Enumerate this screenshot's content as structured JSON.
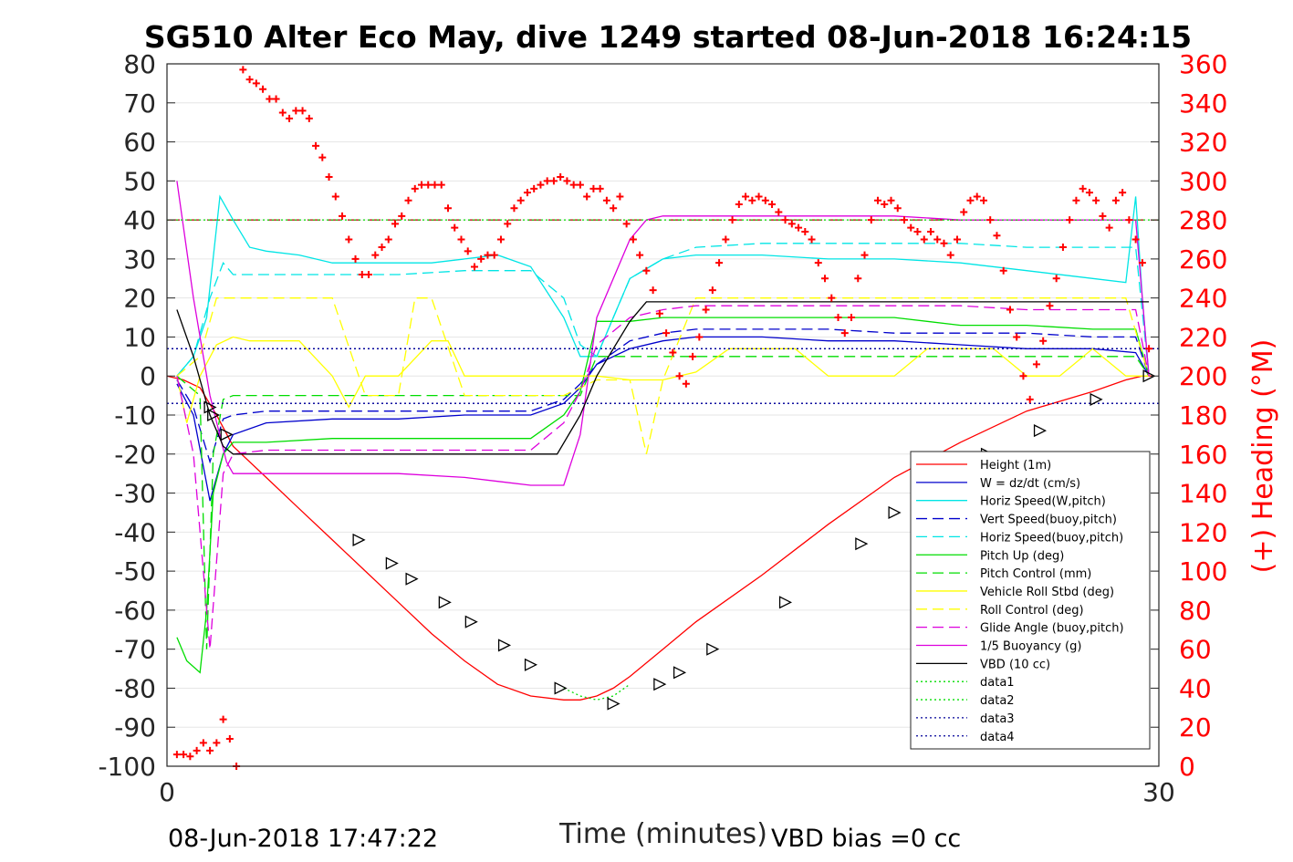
{
  "chart_data": {
    "type": "line",
    "title": "SG510 Alter Eco May, dive 1249 started 08-Jun-2018 16:24:15",
    "xlabel": "Time (minutes)",
    "ylabel": "",
    "y2label": "(+) Heading (°M)",
    "xlim": [
      0,
      30
    ],
    "ylim": [
      -100,
      80
    ],
    "y2lim": [
      0,
      360
    ],
    "x_ticks": [
      "0",
      "30"
    ],
    "y_ticks": [
      "80",
      "70",
      "60",
      "50",
      "40",
      "30",
      "20",
      "10",
      "0",
      "-10",
      "-20",
      "-30",
      "-40",
      "-50",
      "-60",
      "-70",
      "-80",
      "-90",
      "-100"
    ],
    "y2_ticks": [
      "360",
      "340",
      "320",
      "300",
      "280",
      "260",
      "240",
      "220",
      "200",
      "180",
      "160",
      "140",
      "120",
      "100",
      "80",
      "60",
      "40",
      "20",
      "0"
    ],
    "footer_left": "08-Jun-2018 17:47:22",
    "footer_right": "VBD bias =0 cc",
    "grid": "horizontal",
    "legend_position": "bottom-right",
    "colors": {
      "red": "#ff0000",
      "blue": "#0000cc",
      "cyan": "#00e5e5",
      "green": "#00dd00",
      "yellow": "#ffff00",
      "magenta": "#dd00dd",
      "black": "#000000",
      "darkred": "#b30000",
      "navy": "#000099"
    },
    "series": [
      {
        "name": "Height (1m)",
        "color": "#ff0000",
        "dash": "",
        "x": [
          0.0,
          0.5,
          1.0,
          1.5,
          2.0,
          3.0,
          4.0,
          5.0,
          6.0,
          7.0,
          8.0,
          9.0,
          10.0,
          11.0,
          12.0,
          12.5,
          13.0,
          13.5,
          14.0,
          15.0,
          16.0,
          18.0,
          20.0,
          22.0,
          24.0,
          26.0,
          28.0,
          29.0,
          29.5,
          29.8
        ],
        "y": [
          0.0,
          -1.0,
          -3.0,
          -10.0,
          -18.0,
          -26.0,
          -34.0,
          -42.0,
          -50.0,
          -58.0,
          -66.0,
          -73.0,
          -79.0,
          -82.0,
          -83.0,
          -83.0,
          -82.0,
          -80.0,
          -77.0,
          -70.0,
          -63.0,
          -51.0,
          -38.0,
          -26.0,
          -17.0,
          -9.0,
          -4.0,
          -1.0,
          0.0,
          0.0
        ]
      },
      {
        "name": "W = dz/dt (cm/s)",
        "color": "#0000cc",
        "dash": "",
        "x": [
          0.3,
          0.8,
          1.3,
          1.7,
          2.0,
          3.0,
          5.0,
          7.0,
          9.0,
          10.0,
          11.0,
          12.0,
          12.5,
          13.0,
          14.0,
          15.0,
          16.0,
          18.0,
          20.0,
          22.0,
          24.0,
          26.0,
          28.0,
          29.3,
          29.7
        ],
        "y": [
          -2.0,
          -10.0,
          -32.0,
          -20.0,
          -15.0,
          -12.0,
          -11.0,
          -11.0,
          -10.0,
          -10.0,
          -10.0,
          -7.0,
          -3.0,
          3.0,
          7.0,
          9.0,
          10.0,
          10.0,
          9.0,
          9.0,
          8.0,
          7.0,
          7.0,
          6.0,
          0.0
        ]
      },
      {
        "name": "Horiz Speed(W,pitch)",
        "color": "#00e5e5",
        "dash": "",
        "x": [
          0.3,
          0.8,
          1.2,
          1.6,
          2.0,
          2.5,
          3.0,
          4.0,
          5.0,
          6.0,
          7.0,
          8.0,
          9.0,
          10.0,
          11.0,
          12.0,
          12.5,
          13.0,
          14.0,
          15.0,
          16.0,
          18.0,
          20.0,
          22.0,
          24.0,
          26.0,
          28.0,
          29.0,
          29.3,
          29.5,
          29.7
        ],
        "y": [
          0.0,
          5.0,
          15.0,
          46.0,
          40.0,
          33.0,
          32.0,
          31.0,
          29.0,
          29.0,
          29.0,
          29.0,
          30.0,
          31.0,
          28.0,
          15.0,
          5.0,
          5.0,
          25.0,
          30.0,
          31.0,
          31.0,
          30.0,
          30.0,
          29.0,
          27.0,
          25.0,
          24.0,
          46.0,
          20.0,
          0.0
        ]
      },
      {
        "name": "Vert Speed(buoy,pitch)",
        "color": "#0000cc",
        "dash": "12,6",
        "x": [
          0.3,
          0.8,
          1.3,
          1.7,
          2.0,
          3.0,
          5.0,
          7.0,
          9.0,
          10.0,
          11.0,
          12.0,
          12.5,
          13.0,
          14.0,
          15.0,
          16.0,
          18.0,
          20.0,
          22.0,
          24.0,
          26.0,
          28.0,
          29.3,
          29.7
        ],
        "y": [
          -1.0,
          -8.0,
          -22.0,
          -11.0,
          -10.0,
          -9.0,
          -9.0,
          -9.0,
          -9.0,
          -9.0,
          -9.0,
          -6.0,
          -2.0,
          3.0,
          9.0,
          11.0,
          12.0,
          12.0,
          12.0,
          11.0,
          11.0,
          11.0,
          10.0,
          10.0,
          0.0
        ]
      },
      {
        "name": "Horiz Speed(buoy,pitch)",
        "color": "#00e5e5",
        "dash": "12,6",
        "x": [
          0.3,
          0.8,
          1.3,
          1.7,
          2.0,
          3.0,
          5.0,
          7.0,
          9.0,
          10.0,
          11.0,
          12.0,
          12.5,
          13.0,
          14.0,
          15.0,
          16.0,
          18.0,
          20.0,
          22.0,
          24.0,
          26.0,
          28.0,
          29.3,
          29.7
        ],
        "y": [
          0.0,
          5.0,
          20.0,
          29.0,
          26.0,
          26.0,
          26.0,
          26.0,
          27.0,
          27.0,
          27.0,
          20.0,
          8.0,
          5.0,
          25.0,
          30.0,
          33.0,
          34.0,
          34.0,
          34.0,
          34.0,
          33.0,
          33.0,
          33.0,
          0.0
        ]
      },
      {
        "name": "Pitch Up (deg)",
        "color": "#00dd00",
        "dash": "",
        "x": [
          0.3,
          0.6,
          1.0,
          1.2,
          1.4,
          1.7,
          2.0,
          3.0,
          5.0,
          7.0,
          9.0,
          10.0,
          11.0,
          12.0,
          12.5,
          13.0,
          14.0,
          15.0,
          16.0,
          18.0,
          20.0,
          22.0,
          24.0,
          26.0,
          28.0,
          29.3,
          29.7
        ],
        "y": [
          -67.0,
          -73.0,
          -76.0,
          -60.0,
          -30.0,
          -20.0,
          -17.0,
          -17.0,
          -16.0,
          -16.0,
          -16.0,
          -16.0,
          -16.0,
          -10.0,
          -4.0,
          14.0,
          14.0,
          15.0,
          15.0,
          15.0,
          15.0,
          15.0,
          13.0,
          13.0,
          12.0,
          12.0,
          0.0
        ]
      },
      {
        "name": "Pitch Control (mm)",
        "color": "#00dd00",
        "dash": "12,6",
        "x": [
          0.3,
          1.0,
          1.2,
          1.4,
          1.7,
          2.0,
          5.0,
          8.0,
          10.0,
          11.0,
          12.0,
          12.5,
          13.0,
          14.0,
          16.0,
          18.0,
          20.0,
          22.0,
          24.0,
          26.0,
          28.0,
          29.3,
          29.7
        ],
        "y": [
          0.0,
          -5.0,
          -70.0,
          -20.0,
          -6.0,
          -5.0,
          -5.0,
          -5.0,
          -5.0,
          -5.0,
          -5.0,
          -5.0,
          5.0,
          5.0,
          5.0,
          5.0,
          5.0,
          5.0,
          5.0,
          5.0,
          5.0,
          5.0,
          0.0
        ]
      },
      {
        "name": "Vehicle Roll Stbd (deg)",
        "color": "#ffff00",
        "dash": "",
        "x": [
          0.3,
          0.6,
          1.0,
          1.5,
          2.0,
          2.5,
          3.0,
          4.0,
          5.0,
          5.5,
          6.0,
          7.0,
          8.0,
          8.5,
          9.0,
          10.0,
          11.0,
          12.0,
          13.0,
          14.0,
          15.0,
          16.0,
          17.0,
          18.0,
          19.0,
          20.0,
          21.0,
          22.0,
          23.0,
          24.0,
          25.0,
          26.0,
          27.0,
          28.0,
          29.0,
          29.7
        ],
        "y": [
          0.0,
          -12.0,
          0.0,
          8.0,
          10.0,
          9.0,
          9.0,
          9.0,
          0.0,
          -8.0,
          0.0,
          0.0,
          9.0,
          9.0,
          0.0,
          0.0,
          0.0,
          0.0,
          0.0,
          -1.0,
          -1.0,
          1.0,
          7.0,
          7.0,
          7.0,
          0.0,
          0.0,
          0.0,
          7.0,
          7.0,
          7.0,
          0.0,
          0.0,
          7.0,
          0.0,
          0.0
        ]
      },
      {
        "name": "Roll Control (deg)",
        "color": "#ffff00",
        "dash": "12,6",
        "x": [
          0.3,
          1.0,
          1.5,
          2.0,
          3.0,
          4.0,
          5.0,
          6.0,
          7.0,
          7.5,
          8.0,
          9.0,
          10.0,
          11.0,
          12.0,
          13.0,
          14.0,
          14.5,
          15.0,
          16.0,
          18.0,
          20.0,
          22.0,
          24.0,
          26.0,
          28.0,
          29.0,
          29.7
        ],
        "y": [
          0.0,
          5.0,
          20.0,
          20.0,
          20.0,
          20.0,
          20.0,
          -5.0,
          -5.0,
          20.0,
          20.0,
          -5.0,
          -5.0,
          -5.0,
          -5.0,
          -1.0,
          -1.0,
          -20.0,
          -1.0,
          20.0,
          20.0,
          20.0,
          20.0,
          20.0,
          20.0,
          20.0,
          20.0,
          0.0
        ]
      },
      {
        "name": "Glide Angle (buoy,pitch)",
        "color": "#dd00dd",
        "dash": "12,6",
        "x": [
          0.3,
          0.8,
          1.3,
          1.7,
          2.0,
          3.0,
          5.0,
          7.0,
          9.0,
          10.0,
          11.0,
          12.0,
          12.5,
          13.0,
          14.0,
          15.0,
          16.0,
          18.0,
          20.0,
          22.0,
          24.0,
          26.0,
          28.0,
          29.3,
          29.7
        ],
        "y": [
          0.0,
          -20.0,
          -70.0,
          -25.0,
          -20.0,
          -19.0,
          -19.0,
          -19.0,
          -19.0,
          -19.0,
          -19.0,
          -12.0,
          -4.0,
          8.0,
          15.0,
          17.0,
          18.0,
          18.0,
          18.0,
          18.0,
          18.0,
          17.0,
          17.0,
          17.0,
          0.0
        ]
      },
      {
        "name": "1/5 Buoyancy (g)",
        "color": "#dd00dd",
        "dash": "",
        "x": [
          0.3,
          0.8,
          1.3,
          1.8,
          2.0,
          3.0,
          5.0,
          7.0,
          9.0,
          10.0,
          11.0,
          12.0,
          12.5,
          13.0,
          14.0,
          14.5,
          15.0,
          16.0,
          18.0,
          20.0,
          22.0,
          24.0,
          26.0,
          28.0,
          29.3,
          29.7
        ],
        "y": [
          50.0,
          20.0,
          -5.0,
          -22.0,
          -25.0,
          -25.0,
          -25.0,
          -25.0,
          -26.0,
          -27.0,
          -28.0,
          -28.0,
          -15.0,
          15.0,
          35.0,
          40.0,
          41.0,
          41.0,
          41.0,
          41.0,
          41.0,
          40.0,
          40.0,
          40.0,
          40.0,
          0.0
        ]
      },
      {
        "name": "VBD (10 cc)",
        "color": "#000000",
        "dash": "",
        "x": [
          0.3,
          0.8,
          1.3,
          1.7,
          2.0,
          3.0,
          5.0,
          7.0,
          9.0,
          11.0,
          11.8,
          12.5,
          13.0,
          14.0,
          14.5,
          15.0,
          16.0,
          18.0,
          20.0,
          22.0,
          24.0,
          26.0,
          28.0,
          29.3,
          29.7
        ],
        "y": [
          17.0,
          5.0,
          -10.0,
          -18.0,
          -20.0,
          -20.0,
          -20.0,
          -20.0,
          -20.0,
          -20.0,
          -20.0,
          -10.0,
          0.0,
          14.0,
          19.0,
          19.0,
          19.0,
          19.0,
          19.0,
          19.0,
          19.0,
          19.0,
          19.0,
          19.0,
          19.0
        ]
      },
      {
        "name": "data1",
        "color": "#00dd00",
        "dash": "2,3",
        "x": [
          0.0,
          30.0
        ],
        "y": [
          40.0,
          40.0
        ]
      },
      {
        "name": "data2",
        "color": "#00dd00",
        "dash": "2,3",
        "x": [
          12.0,
          12.5,
          13.0,
          13.5,
          14.0
        ],
        "y": [
          -80.0,
          -82.0,
          -83.0,
          -82.0,
          -79.0
        ]
      },
      {
        "name": "data3",
        "color": "#000099",
        "dash": "2,3",
        "x": [
          0.0,
          30.0
        ],
        "y": [
          7.0,
          7.0
        ]
      },
      {
        "name": "data4",
        "color": "#000099",
        "dash": "2,3",
        "x": [
          0.0,
          30.0
        ],
        "y": [
          -7.0,
          -7.0
        ]
      }
    ],
    "reference_lines": [
      {
        "y": 40,
        "color": "#b30000",
        "dash": "14,8"
      },
      {
        "y": 7,
        "color": "#000099",
        "dash": "2,3"
      },
      {
        "y": -7,
        "color": "#000099",
        "dash": "2,3"
      }
    ],
    "heading_points": {
      "x": [
        0.3,
        0.5,
        0.7,
        0.9,
        1.1,
        1.3,
        1.5,
        1.7,
        1.9,
        2.1,
        2.3,
        2.5,
        2.7,
        2.9,
        3.1,
        3.3,
        3.5,
        3.7,
        3.9,
        4.1,
        4.3,
        4.5,
        4.7,
        4.9,
        5.1,
        5.3,
        5.5,
        5.7,
        5.9,
        6.1,
        6.3,
        6.5,
        6.7,
        6.9,
        7.1,
        7.3,
        7.5,
        7.7,
        7.9,
        8.1,
        8.3,
        8.5,
        8.7,
        8.9,
        9.1,
        9.3,
        9.5,
        9.7,
        9.9,
        10.1,
        10.3,
        10.5,
        10.7,
        10.9,
        11.1,
        11.3,
        11.5,
        11.7,
        11.9,
        12.1,
        12.3,
        12.5,
        12.7,
        12.9,
        13.1,
        13.3,
        13.5,
        13.7,
        13.9,
        14.1,
        14.3,
        14.5,
        14.7,
        14.9,
        15.1,
        15.3,
        15.5,
        15.7,
        15.9,
        16.1,
        16.3,
        16.5,
        16.7,
        16.9,
        17.1,
        17.3,
        17.5,
        17.7,
        17.9,
        18.1,
        18.3,
        18.5,
        18.7,
        18.9,
        19.1,
        19.3,
        19.5,
        19.7,
        19.9,
        20.1,
        20.3,
        20.5,
        20.7,
        20.9,
        21.1,
        21.3,
        21.5,
        21.7,
        21.9,
        22.1,
        22.3,
        22.5,
        22.7,
        22.9,
        23.1,
        23.3,
        23.5,
        23.7,
        23.9,
        24.1,
        24.3,
        24.5,
        24.7,
        24.9,
        25.1,
        25.3,
        25.5,
        25.7,
        25.9,
        26.1,
        26.3,
        26.5,
        26.7,
        26.9,
        27.1,
        27.3,
        27.5,
        27.7,
        27.9,
        28.1,
        28.3,
        28.5,
        28.7,
        28.9,
        29.1,
        29.3,
        29.5,
        29.7
      ],
      "y": [
        6.0,
        6.0,
        5.0,
        8.0,
        12.0,
        8.0,
        12.0,
        24.0,
        14.0,
        0.0,
        357.0,
        352.0,
        350.0,
        347.0,
        342.0,
        342.0,
        335.0,
        332.0,
        336.0,
        336.0,
        332.0,
        318.0,
        312.0,
        302.0,
        292.0,
        282.0,
        270.0,
        260.0,
        252.0,
        252.0,
        262.0,
        266.0,
        270.0,
        278.0,
        282.0,
        290.0,
        296.0,
        298.0,
        298.0,
        298.0,
        298.0,
        286.0,
        276.0,
        270.0,
        264.0,
        256.0,
        260.0,
        262.0,
        262.0,
        270.0,
        278.0,
        286.0,
        290.0,
        294.0,
        296.0,
        298.0,
        300.0,
        300.0,
        302.0,
        300.0,
        298.0,
        298.0,
        292.0,
        296.0,
        296.0,
        290.0,
        286.0,
        292.0,
        278.0,
        270.0,
        262.0,
        254.0,
        244.0,
        232.0,
        222.0,
        212.0,
        200.0,
        196.0,
        210.0,
        220.0,
        234.0,
        244.0,
        258.0,
        270.0,
        280.0,
        288.0,
        292.0,
        290.0,
        292.0,
        290.0,
        288.0,
        284.0,
        280.0,
        278.0,
        276.0,
        274.0,
        270.0,
        258.0,
        250.0,
        240.0,
        230.0,
        222.0,
        230.0,
        250.0,
        262.0,
        280.0,
        290.0,
        288.0,
        290.0,
        286.0,
        280.0,
        276.0,
        274.0,
        270.0,
        274.0,
        270.0,
        268.0,
        262.0,
        270.0,
        284.0,
        290.0,
        292.0,
        290.0,
        280.0,
        272.0,
        254.0,
        234.0,
        220.0,
        200.0,
        188.0,
        206.0,
        218.0,
        236.0,
        250.0,
        266.0,
        280.0,
        290.0,
        296.0,
        294.0,
        290.0,
        282.0,
        276.0,
        290.0,
        294.0,
        280.0,
        270.0,
        258.0,
        214.0
      ]
    },
    "triangle_markers": {
      "x": [
        1.3,
        1.4,
        1.8,
        5.8,
        6.8,
        7.4,
        8.4,
        9.2,
        10.2,
        11.0,
        11.9,
        13.5,
        14.9,
        15.5,
        16.5,
        18.7,
        21.0,
        22.0,
        24.8,
        26.4,
        28.1,
        29.7
      ],
      "y": [
        -8.0,
        -10.0,
        -15.0,
        -42.0,
        -48.0,
        -52.0,
        -58.0,
        -63.0,
        -69.0,
        -74.0,
        -80.0,
        -84.0,
        -79.0,
        -76.0,
        -70.0,
        -58.0,
        -43.0,
        -35.0,
        -20.0,
        -14.0,
        -6.0,
        0.0
      ]
    }
  }
}
